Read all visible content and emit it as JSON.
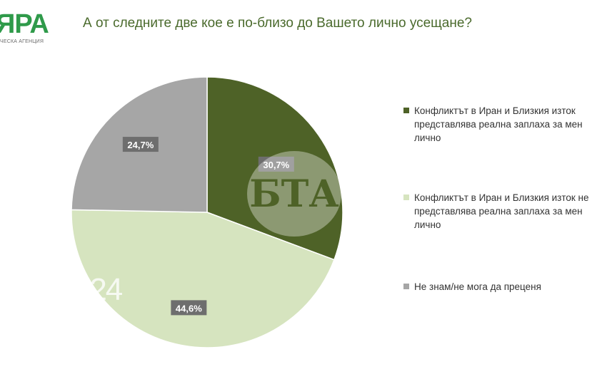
{
  "logo": {
    "text": "ЯРА",
    "subtitle": "ЧЕСКА АГЕНЦИЯ",
    "color": "#2f9a4a"
  },
  "title": "А от следните две кое е по-близо до Вашето лично усещане?",
  "watermarks": {
    "bta": "БТА",
    "nrd": "NRD24"
  },
  "chart_data": {
    "type": "pie",
    "title": "А от следните две кое е по-близо до Вашето лично усещане?",
    "start_angle_deg": 0,
    "direction": "clockwise",
    "legend_position": "right",
    "slices": [
      {
        "label": "Конфликтът в Иран и Близкия изток представлява реална заплаха за мен лично",
        "value": 30.7,
        "display": "30,7%",
        "color": "#4e6227"
      },
      {
        "label": "Конфликтът в Иран и Близкия изток не представлява реална заплаха за мен лично",
        "value": 44.6,
        "display": "44,6%",
        "color": "#d6e4bf"
      },
      {
        "label": "Не знам/не мога да преценя",
        "value": 24.7,
        "display": "24,7%",
        "color": "#a6a6a6"
      }
    ]
  }
}
